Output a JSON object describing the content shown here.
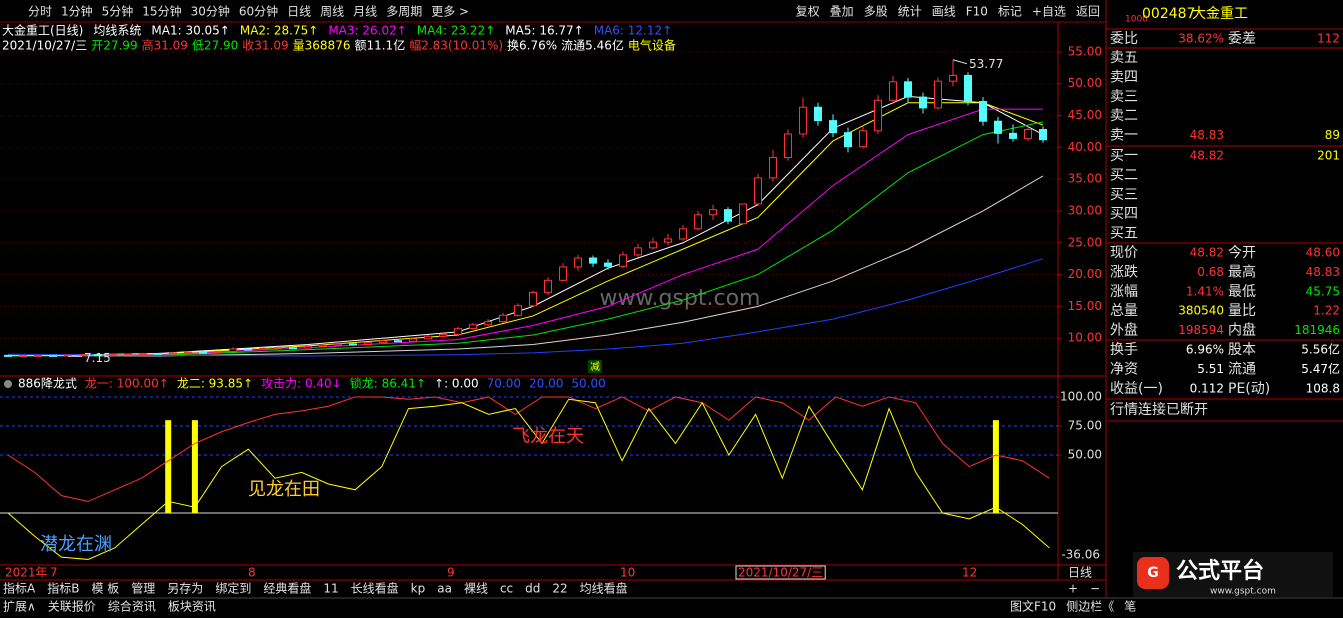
{
  "toolbar": {
    "periods": [
      "分时",
      "1分钟",
      "5分钟",
      "15分钟",
      "30分钟",
      "60分钟",
      "日线",
      "周线",
      "月线",
      "多周期",
      "更多 >"
    ],
    "tools": [
      "复权",
      "叠加",
      "多股",
      "统计",
      "画线",
      "F10",
      "标记",
      "+自选",
      "返回"
    ]
  },
  "price_chart": {
    "type": "candlestick",
    "header1": [
      {
        "text": "大金重工(日线)",
        "color": "#ffffff"
      },
      {
        "text": "均线系统",
        "color": "#ffffff"
      },
      {
        "text": "MA1: 30.05↑",
        "color": "#ffffff"
      },
      {
        "text": "MA2: 28.75↑",
        "color": "#ffff00"
      },
      {
        "text": "MA3: 26.02↑",
        "color": "#ff00ff"
      },
      {
        "text": "MA4: 23.22↑",
        "color": "#00e600"
      },
      {
        "text": "MA5: 16.77↑",
        "color": "#ffffff"
      },
      {
        "text": "MA6: 12.12↑",
        "color": "#3050ff"
      }
    ],
    "header2": [
      {
        "text": "2021/10/27/三",
        "color": "#ffffff"
      },
      {
        "text": "开27.99",
        "color": "#00e600"
      },
      {
        "text": "高31.09",
        "color": "#ff3232"
      },
      {
        "text": "低27.90",
        "color": "#00e600"
      },
      {
        "text": "收31.09",
        "color": "#ff3232"
      },
      {
        "text": "量368876",
        "color": "#ffff00"
      },
      {
        "text": "额11.1亿",
        "color": "#ffffff"
      },
      {
        "text": "幅2.83(10.01%)",
        "color": "#ff3232"
      },
      {
        "text": "换6.76%",
        "color": "#ffffff"
      },
      {
        "text": "流通5.46亿",
        "color": "#ffffff"
      },
      {
        "text": "电气设备",
        "color": "#ffff00"
      }
    ],
    "ylim": [
      5,
      59.7
    ],
    "yticks": [
      {
        "value": 10,
        "label": "10.00"
      },
      {
        "value": 15,
        "label": "15.00"
      },
      {
        "value": 20,
        "label": "20.00"
      },
      {
        "value": 25,
        "label": "25.00"
      },
      {
        "value": 30,
        "label": "30.00"
      },
      {
        "value": 35,
        "label": "35.00"
      },
      {
        "value": 40,
        "label": "40.00"
      },
      {
        "value": 45,
        "label": "45.00"
      },
      {
        "value": 50,
        "label": "50.00"
      },
      {
        "value": 55,
        "label": "55.00"
      }
    ],
    "up_color": "#ff3232",
    "down_color": "#54fcfc",
    "candles": [
      [
        7.3,
        7.2,
        7.4,
        7.1
      ],
      [
        7.2,
        7.25,
        7.3,
        7.15
      ],
      [
        7.25,
        7.3,
        7.4,
        7.2
      ],
      [
        7.3,
        7.2,
        7.35,
        7.15
      ],
      [
        7.2,
        7.35,
        7.4,
        7.15
      ],
      [
        7.35,
        7.4,
        7.5,
        7.3
      ],
      [
        7.4,
        7.3,
        7.45,
        7.25
      ],
      [
        7.3,
        7.45,
        7.55,
        7.25
      ],
      [
        7.45,
        7.5,
        7.6,
        7.4
      ],
      [
        7.5,
        7.6,
        7.7,
        7.45
      ],
      [
        7.6,
        7.55,
        7.7,
        7.5
      ],
      [
        7.55,
        7.7,
        7.8,
        7.5
      ],
      [
        7.7,
        7.8,
        7.9,
        7.65
      ],
      [
        7.8,
        7.75,
        7.95,
        7.7
      ],
      [
        7.75,
        7.9,
        8.0,
        7.7
      ],
      [
        7.9,
        8.3,
        8.6,
        7.85
      ],
      [
        8.3,
        8.2,
        8.4,
        8.1
      ],
      [
        8.2,
        8.4,
        8.5,
        8.15
      ],
      [
        8.4,
        8.5,
        8.6,
        8.3
      ],
      [
        8.5,
        8.45,
        8.65,
        8.4
      ],
      [
        8.45,
        8.7,
        8.8,
        8.4
      ],
      [
        8.7,
        8.9,
        9.0,
        8.6
      ],
      [
        8.9,
        9.1,
        9.2,
        8.8
      ],
      [
        9.1,
        9.0,
        9.3,
        8.9
      ],
      [
        9.0,
        9.3,
        9.4,
        8.95
      ],
      [
        9.3,
        9.6,
        9.7,
        9.2
      ],
      [
        9.6,
        9.5,
        9.8,
        9.4
      ],
      [
        9.5,
        9.9,
        10.0,
        9.45
      ],
      [
        9.9,
        10.3,
        10.5,
        9.8
      ],
      [
        10.3,
        10.6,
        10.8,
        10.1
      ],
      [
        10.6,
        11.5,
        11.8,
        10.5
      ],
      [
        11.5,
        12.1,
        12.4,
        11.3
      ],
      [
        12.1,
        12.6,
        13.0,
        11.9
      ],
      [
        12.6,
        13.6,
        14.0,
        12.4
      ],
      [
        13.6,
        15.1,
        15.5,
        13.4
      ],
      [
        15.1,
        17.2,
        17.5,
        14.9
      ],
      [
        17.2,
        19.1,
        19.6,
        16.8
      ],
      [
        19.1,
        21.2,
        21.8,
        18.9
      ],
      [
        21.2,
        22.6,
        23.1,
        20.6
      ],
      [
        22.6,
        21.8,
        23.0,
        21.2
      ],
      [
        21.8,
        21.3,
        22.4,
        20.8
      ],
      [
        21.3,
        23.1,
        23.6,
        21.0
      ],
      [
        23.1,
        24.2,
        24.8,
        22.7
      ],
      [
        24.2,
        25.1,
        25.8,
        23.9
      ],
      [
        25.1,
        25.6,
        26.4,
        24.6
      ],
      [
        25.6,
        27.2,
        27.8,
        25.3
      ],
      [
        27.2,
        29.4,
        30.0,
        26.9
      ],
      [
        29.4,
        30.2,
        31.0,
        28.6
      ],
      [
        30.2,
        28.4,
        30.6,
        27.9
      ],
      [
        27.99,
        31.09,
        31.09,
        27.9
      ],
      [
        31.1,
        35.2,
        35.8,
        30.8
      ],
      [
        35.2,
        38.4,
        39.6,
        34.6
      ],
      [
        38.4,
        42.1,
        42.8,
        37.9
      ],
      [
        42.1,
        46.3,
        47.8,
        41.5
      ],
      [
        46.3,
        44.2,
        47.0,
        43.4
      ],
      [
        44.2,
        42.3,
        45.2,
        41.6
      ],
      [
        42.3,
        40.1,
        43.1,
        39.2
      ],
      [
        40.1,
        42.6,
        43.4,
        39.8
      ],
      [
        42.6,
        47.4,
        48.2,
        42.1
      ],
      [
        47.4,
        50.3,
        51.2,
        46.8
      ],
      [
        50.3,
        47.9,
        50.9,
        47.1
      ],
      [
        47.9,
        46.2,
        48.6,
        45.3
      ],
      [
        46.2,
        50.4,
        51.0,
        45.9
      ],
      [
        50.4,
        51.3,
        53.77,
        49.6
      ],
      [
        51.3,
        47.2,
        51.8,
        46.6
      ],
      [
        47.2,
        44.1,
        47.9,
        43.4
      ],
      [
        44.1,
        42.2,
        44.8,
        40.6
      ],
      [
        42.2,
        41.4,
        43.6,
        40.9
      ],
      [
        41.4,
        42.8,
        43.5,
        41.0
      ],
      [
        42.8,
        41.2,
        43.3,
        40.7
      ]
    ],
    "ma_x": [
      0,
      10,
      20,
      30,
      35,
      40,
      45,
      50,
      55,
      60,
      65,
      69
    ],
    "ma_lines": [
      {
        "color": "#ffffff",
        "values": [
          7.2,
          7.6,
          9,
          11,
          15,
          21,
          25,
          31,
          43,
          48,
          47,
          42
        ]
      },
      {
        "color": "#ffff00",
        "values": [
          7.2,
          7.5,
          8.8,
          10.5,
          13.5,
          19,
          24,
          29,
          41,
          47,
          47,
          43.5
        ]
      },
      {
        "color": "#ff00ff",
        "values": [
          7.2,
          7.4,
          8.5,
          9.8,
          12,
          15,
          20,
          24,
          34,
          42,
          46,
          46
        ]
      },
      {
        "color": "#00e600",
        "values": [
          7.2,
          7.3,
          8.2,
          9.2,
          10.5,
          13,
          16,
          20,
          27,
          36,
          42,
          44
        ]
      },
      {
        "color": "#d8d8d8",
        "values": [
          7.3,
          7.2,
          7.6,
          8.3,
          9,
          10.5,
          12.5,
          15,
          19,
          24,
          30,
          35.5
        ]
      },
      {
        "color": "#2040ff",
        "values": [
          7.5,
          7.3,
          7.2,
          7.4,
          7.7,
          8.3,
          9.2,
          11,
          13,
          16,
          19.5,
          22.5
        ]
      }
    ],
    "high_label": 53.77,
    "low_label": 7.15,
    "marker": "减",
    "watermark": "www.gspt.com"
  },
  "indicator": {
    "type": "line",
    "header": [
      {
        "text": "886降龙式",
        "color": "#ffffff"
      },
      {
        "text": "龙一: 100.00↑",
        "color": "#ff3232"
      },
      {
        "text": "龙二: 93.85↑",
        "color": "#ffff00"
      },
      {
        "text": "攻击力: 0.40↓",
        "color": "#ff00ff"
      },
      {
        "text": "锁龙: 86.41↑",
        "color": "#00e600"
      },
      {
        "text": "↑: 0.00",
        "color": "#ffffff"
      },
      {
        "text": "70.00",
        "color": "#3050ff"
      },
      {
        "text": "20.00",
        "color": "#3050ff"
      },
      {
        "text": "50.00",
        "color": "#3050ff"
      }
    ],
    "ylim": [
      -44.8,
      117.2
    ],
    "yticks": [
      {
        "value": 50,
        "label": "50.00"
      },
      {
        "value": 75,
        "label": "75.00"
      },
      {
        "value": 100,
        "label": "100.00"
      }
    ],
    "last_value": -36.06,
    "baseline": 0,
    "series": [
      {
        "color": "#ff3232",
        "values": [
          50,
          35,
          15,
          10,
          20,
          30,
          45,
          60,
          70,
          78,
          85,
          88,
          92,
          100,
          100,
          98,
          100,
          95,
          100,
          85,
          100,
          100,
          90,
          100,
          88,
          100,
          95,
          80,
          100,
          95,
          80,
          100,
          92,
          100,
          95,
          60,
          40,
          50,
          45,
          30
        ]
      },
      {
        "color": "#ffff00",
        "values": [
          0,
          -20,
          -38,
          -40,
          -30,
          -10,
          10,
          5,
          40,
          55,
          30,
          35,
          25,
          20,
          40,
          90,
          92,
          95,
          85,
          90,
          60,
          98,
          95,
          45,
          90,
          60,
          95,
          50,
          85,
          30,
          92,
          55,
          20,
          90,
          35,
          0,
          -5,
          5,
          -10,
          -30
        ]
      }
    ],
    "signal_color": "#ffff00",
    "signals": [
      null,
      null,
      null,
      null,
      null,
      null,
      80,
      80,
      null,
      null,
      null,
      null,
      null,
      null,
      null,
      null,
      null,
      null,
      null,
      null,
      null,
      null,
      null,
      null,
      null,
      null,
      null,
      null,
      null,
      null,
      null,
      null,
      null,
      null,
      null,
      null,
      null,
      80,
      null,
      null
    ],
    "annotations": [
      {
        "text": "潜龙在渊",
        "color": "#4aa0ff"
      },
      {
        "text": "见龙在田",
        "color": "#ffcc33"
      },
      {
        "text": "飞龙在天",
        "color": "#ff3232"
      }
    ]
  },
  "x_axis": {
    "labels": [
      "2021年",
      "7",
      "8",
      "9",
      "10",
      "2021/10/27/三",
      "12"
    ],
    "period": "日线"
  },
  "bottom_bar": {
    "tabs": [
      "指标A",
      "指标B",
      "模 板",
      "管理",
      "另存为",
      "绑定到",
      "经典看盘",
      "11",
      "长线看盘",
      "kp",
      "aa",
      "裸线",
      "cc",
      "dd",
      "22",
      "均线看盘"
    ],
    "zoom": [
      "+",
      "−"
    ],
    "links": [
      "扩展∧",
      "关联报价",
      "综合资讯",
      "板块资讯"
    ],
    "right": [
      "图文F10",
      "侧边栏《",
      "笔"
    ]
  },
  "quote_panel": {
    "badge": "1000",
    "code": "002487",
    "name": "大金重工",
    "ratio": [
      "委比",
      "38.62%",
      "委差",
      "112"
    ],
    "asks": [
      [
        "卖五"
      ],
      [
        "卖四"
      ],
      [
        "卖三"
      ],
      [
        "卖二"
      ],
      [
        "卖一",
        "48.83",
        "89"
      ]
    ],
    "bids": [
      [
        "买一",
        "48.82",
        "201"
      ],
      [
        "买二"
      ],
      [
        "买三"
      ],
      [
        "买四"
      ],
      [
        "买五"
      ]
    ],
    "stats": [
      [
        "现价",
        "48.82",
        "今开",
        "48.60"
      ],
      [
        "涨跌",
        "0.68",
        "最高",
        "48.83"
      ],
      [
        "涨幅",
        "1.41%",
        "最低",
        "45.75"
      ],
      [
        "总量",
        "380540",
        "量比",
        "1.22"
      ],
      [
        "外盘",
        "198594",
        "内盘",
        "181946"
      ]
    ],
    "stat_colors": [
      [
        "#ff3232",
        "#ff3232"
      ],
      [
        "#ff3232",
        "#ff3232"
      ],
      [
        "#ff3232",
        "#00e600"
      ],
      [
        "#ffff00",
        "#ff3232"
      ],
      [
        "#ff3232",
        "#00e600"
      ]
    ],
    "finance": [
      [
        "换手",
        "6.96%",
        "股本",
        "5.56亿"
      ],
      [
        "净资",
        "5.51",
        "流通",
        "5.47亿"
      ],
      [
        "收益(一)",
        "0.112",
        "PE(动)",
        "108.8"
      ]
    ],
    "status": "行情连接已断开"
  },
  "logo": {
    "title": "公式平台",
    "url": "www.gspt.com"
  }
}
